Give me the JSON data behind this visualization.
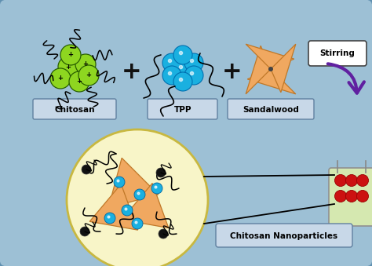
{
  "bg_color": "#8ab4cc",
  "panel_bg": "#9dc0d5",
  "chitosan_label": "Chitosan",
  "tpp_label": "TPP",
  "sandalwood_label": "Sandalwood",
  "stirring_label": "Stirring",
  "nanoparticles_label": "Chitosan Nanoparticles",
  "green_color": "#8ed620",
  "teal_blue": "#1ab0e0",
  "orange_color": "#f0a860",
  "purple_arrow": "#6020a0",
  "red_dot_color": "#cc1111",
  "yellow_circle_bg": "#f8f5c8",
  "vial_bg": "#d5e8b0",
  "label_box_color": "#c8d8e8",
  "black": "#111111"
}
